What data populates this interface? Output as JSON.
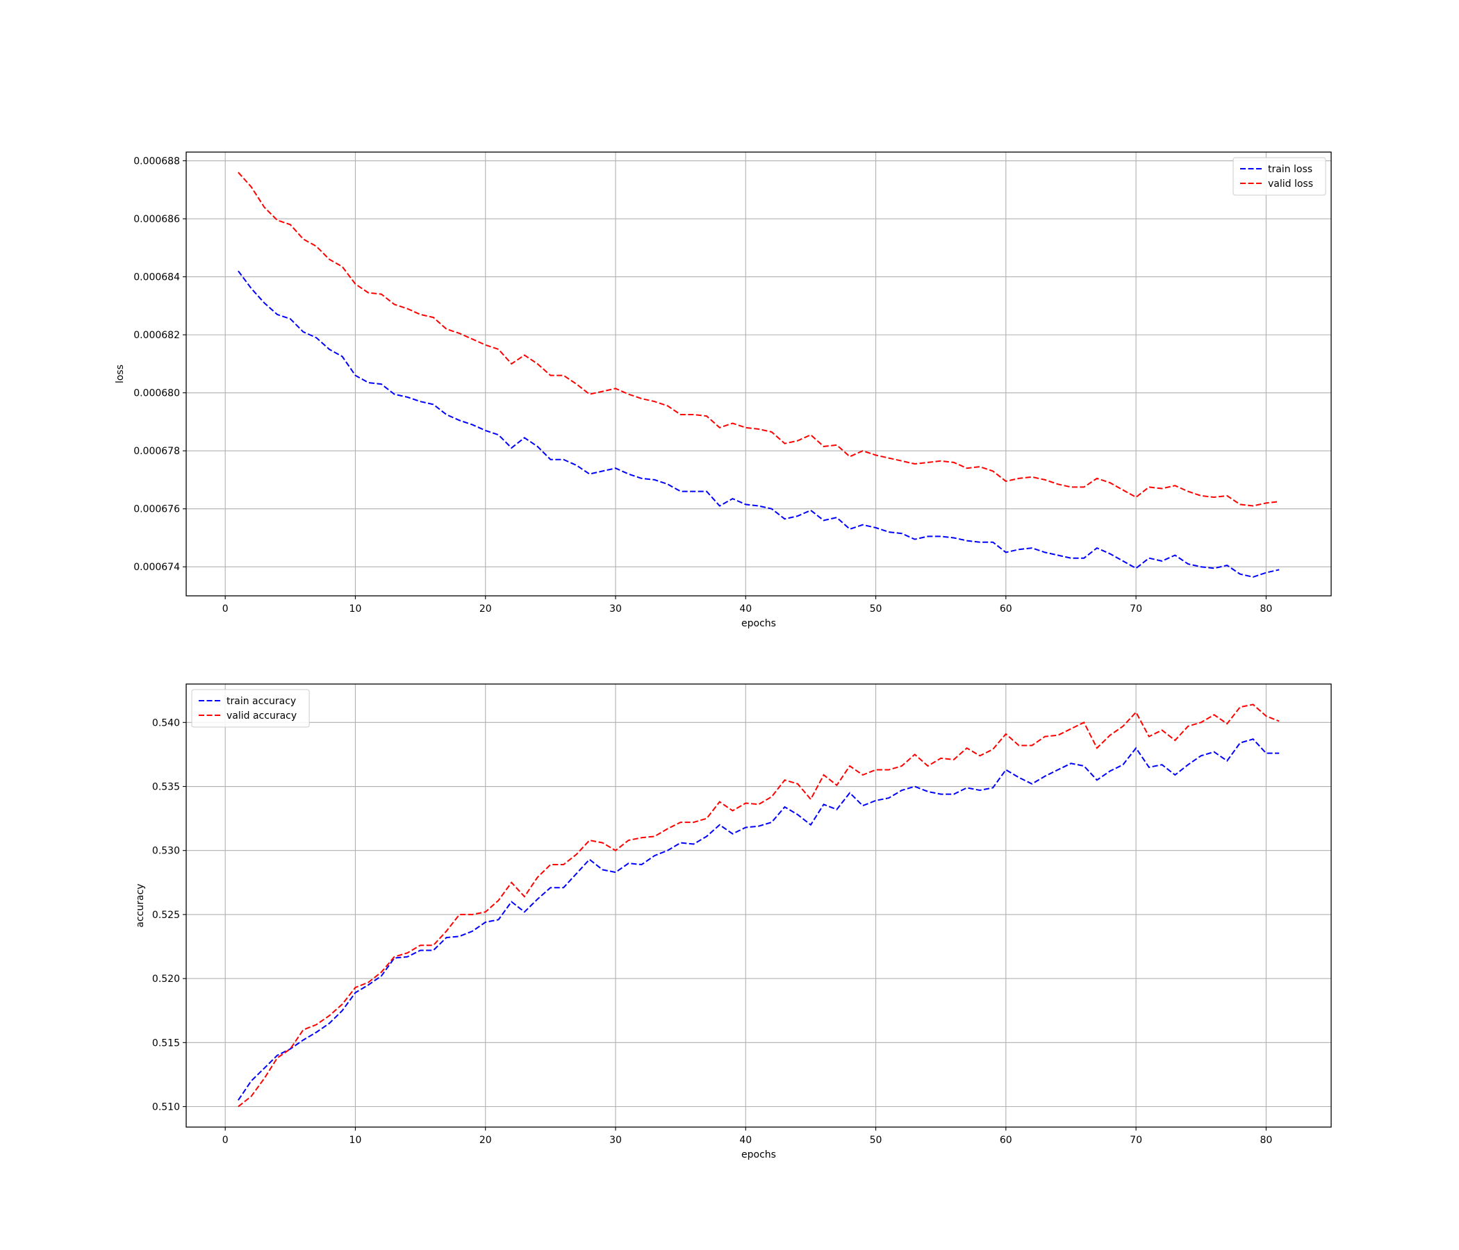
{
  "chart_data": [
    {
      "type": "line",
      "title": "",
      "xlabel": "epochs",
      "ylabel": "loss",
      "xlim": [
        -3,
        85
      ],
      "ylim": [
        0.000673,
        0.0006883
      ],
      "xticks": [
        0,
        10,
        20,
        30,
        40,
        50,
        60,
        70,
        80
      ],
      "xtick_labels": [
        "0",
        "10",
        "20",
        "30",
        "40",
        "50",
        "60",
        "70",
        "80"
      ],
      "yticks": [
        0.000674,
        0.000676,
        0.000678,
        0.00068,
        0.000682,
        0.000684,
        0.000686,
        0.000688
      ],
      "ytick_labels": [
        "0.000674",
        "0.000676",
        "0.000678",
        "0.000680",
        "0.000682",
        "0.000684",
        "0.000686",
        "0.000688"
      ],
      "grid": true,
      "legend_position": "top-right",
      "line_style": "dashed",
      "x": [
        1,
        2,
        3,
        4,
        5,
        6,
        7,
        8,
        9,
        10,
        11,
        12,
        13,
        14,
        15,
        16,
        17,
        18,
        19,
        20,
        21,
        22,
        23,
        24,
        25,
        26,
        27,
        28,
        29,
        30,
        31,
        32,
        33,
        34,
        35,
        36,
        37,
        38,
        39,
        40,
        41,
        42,
        43,
        44,
        45,
        46,
        47,
        48,
        49,
        50,
        51,
        52,
        53,
        54,
        55,
        56,
        57,
        58,
        59,
        60,
        61,
        62,
        63,
        64,
        65,
        66,
        67,
        68,
        69,
        70,
        71,
        72,
        73,
        74,
        75,
        76,
        77,
        78,
        79,
        80,
        81
      ],
      "series": [
        {
          "name": "train loss",
          "color": "#0000ff",
          "values": [
            0.0006842,
            0.0006836,
            0.0006831,
            0.0006827,
            0.00068255,
            0.0006821,
            0.0006819,
            0.0006815,
            0.00068125,
            0.0006806,
            0.00068035,
            0.0006803,
            0.00067995,
            0.00067985,
            0.0006797,
            0.0006796,
            0.00067925,
            0.00067905,
            0.0006789,
            0.0006787,
            0.00067855,
            0.0006781,
            0.00067845,
            0.00067815,
            0.0006777,
            0.0006777,
            0.0006775,
            0.0006772,
            0.0006773,
            0.0006774,
            0.0006772,
            0.00067705,
            0.000677,
            0.00067685,
            0.0006766,
            0.0006766,
            0.0006766,
            0.0006761,
            0.00067635,
            0.00067615,
            0.0006761,
            0.000676,
            0.00067565,
            0.00067575,
            0.00067595,
            0.0006756,
            0.0006757,
            0.0006753,
            0.00067545,
            0.00067535,
            0.0006752,
            0.00067515,
            0.00067495,
            0.00067505,
            0.00067505,
            0.000675,
            0.0006749,
            0.00067485,
            0.00067485,
            0.0006745,
            0.0006746,
            0.00067465,
            0.0006745,
            0.0006744,
            0.0006743,
            0.0006743,
            0.00067465,
            0.00067445,
            0.0006742,
            0.00067395,
            0.0006743,
            0.0006742,
            0.0006744,
            0.0006741,
            0.000674,
            0.00067395,
            0.00067405,
            0.00067375,
            0.00067365,
            0.0006738,
            0.0006739
          ]
        },
        {
          "name": "valid loss",
          "color": "#ff0000",
          "values": [
            0.0006876,
            0.0006871,
            0.0006864,
            0.00068595,
            0.0006858,
            0.0006853,
            0.00068505,
            0.0006846,
            0.00068435,
            0.00068375,
            0.00068345,
            0.0006834,
            0.00068305,
            0.0006829,
            0.0006827,
            0.0006826,
            0.0006822,
            0.00068205,
            0.00068185,
            0.00068165,
            0.0006815,
            0.000681,
            0.0006813,
            0.000681,
            0.0006806,
            0.0006806,
            0.0006803,
            0.00067995,
            0.00068005,
            0.00068015,
            0.00067995,
            0.0006798,
            0.0006797,
            0.00067955,
            0.00067925,
            0.00067925,
            0.0006792,
            0.0006788,
            0.00067895,
            0.0006788,
            0.00067875,
            0.00067865,
            0.00067825,
            0.00067835,
            0.00067855,
            0.00067815,
            0.0006782,
            0.0006778,
            0.000678,
            0.00067785,
            0.00067775,
            0.00067765,
            0.00067755,
            0.0006776,
            0.00067765,
            0.0006776,
            0.0006774,
            0.00067745,
            0.0006773,
            0.00067695,
            0.00067705,
            0.0006771,
            0.000677,
            0.00067685,
            0.00067675,
            0.00067675,
            0.00067705,
            0.0006769,
            0.00067665,
            0.0006764,
            0.00067675,
            0.0006767,
            0.0006768,
            0.0006766,
            0.00067645,
            0.0006764,
            0.00067645,
            0.00067615,
            0.0006761,
            0.0006762,
            0.00067625
          ]
        }
      ]
    },
    {
      "type": "line",
      "title": "",
      "xlabel": "epochs",
      "ylabel": "accuracy",
      "xlim": [
        -3,
        85
      ],
      "ylim": [
        0.5084,
        0.543
      ],
      "xticks": [
        0,
        10,
        20,
        30,
        40,
        50,
        60,
        70,
        80
      ],
      "xtick_labels": [
        "0",
        "10",
        "20",
        "30",
        "40",
        "50",
        "60",
        "70",
        "80"
      ],
      "yticks": [
        0.51,
        0.515,
        0.52,
        0.525,
        0.53,
        0.535,
        0.54
      ],
      "ytick_labels": [
        "0.510",
        "0.515",
        "0.520",
        "0.525",
        "0.530",
        "0.535",
        "0.540"
      ],
      "grid": true,
      "legend_position": "top-left",
      "line_style": "dashed",
      "x": [
        1,
        2,
        3,
        4,
        5,
        6,
        7,
        8,
        9,
        10,
        11,
        12,
        13,
        14,
        15,
        16,
        17,
        18,
        19,
        20,
        21,
        22,
        23,
        24,
        25,
        26,
        27,
        28,
        29,
        30,
        31,
        32,
        33,
        34,
        35,
        36,
        37,
        38,
        39,
        40,
        41,
        42,
        43,
        44,
        45,
        46,
        47,
        48,
        49,
        50,
        51,
        52,
        53,
        54,
        55,
        56,
        57,
        58,
        59,
        60,
        61,
        62,
        63,
        64,
        65,
        66,
        67,
        68,
        69,
        70,
        71,
        72,
        73,
        74,
        75,
        76,
        77,
        78,
        79,
        80,
        81
      ],
      "series": [
        {
          "name": "train accuracy",
          "color": "#0000ff",
          "values": [
            0.5105,
            0.512,
            0.513,
            0.514,
            0.5145,
            0.5152,
            0.5158,
            0.5165,
            0.5175,
            0.5189,
            0.5195,
            0.5202,
            0.5216,
            0.5217,
            0.5222,
            0.5222,
            0.5232,
            0.5233,
            0.5237,
            0.5244,
            0.5246,
            0.526,
            0.5252,
            0.5262,
            0.5271,
            0.5271,
            0.5282,
            0.5293,
            0.5285,
            0.5283,
            0.529,
            0.5289,
            0.5296,
            0.53,
            0.5306,
            0.5305,
            0.5311,
            0.532,
            0.5313,
            0.5318,
            0.5319,
            0.5322,
            0.5334,
            0.5328,
            0.532,
            0.5336,
            0.5332,
            0.5345,
            0.5335,
            0.5339,
            0.5341,
            0.5347,
            0.535,
            0.5346,
            0.5344,
            0.5344,
            0.5349,
            0.5347,
            0.5349,
            0.5363,
            0.5357,
            0.5352,
            0.5358,
            0.5363,
            0.5368,
            0.5366,
            0.5355,
            0.5362,
            0.5367,
            0.538,
            0.5365,
            0.5367,
            0.5359,
            0.5367,
            0.5374,
            0.5377,
            0.537,
            0.5384,
            0.5387,
            0.5376,
            0.5376
          ]
        },
        {
          "name": "valid accuracy",
          "color": "#ff0000",
          "values": [
            0.51,
            0.5108,
            0.5122,
            0.5138,
            0.5145,
            0.516,
            0.5164,
            0.5171,
            0.518,
            0.5193,
            0.5197,
            0.5205,
            0.5217,
            0.522,
            0.5226,
            0.5226,
            0.5237,
            0.525,
            0.525,
            0.5252,
            0.5261,
            0.5275,
            0.5264,
            0.5279,
            0.5289,
            0.5289,
            0.5297,
            0.5308,
            0.5306,
            0.53,
            0.5308,
            0.531,
            0.5311,
            0.5317,
            0.5322,
            0.5322,
            0.5325,
            0.5338,
            0.5331,
            0.5337,
            0.5336,
            0.5342,
            0.5355,
            0.5352,
            0.534,
            0.5359,
            0.5351,
            0.5366,
            0.5359,
            0.5363,
            0.5363,
            0.5366,
            0.5375,
            0.5366,
            0.5372,
            0.5371,
            0.538,
            0.5374,
            0.5379,
            0.5391,
            0.5382,
            0.5382,
            0.5389,
            0.539,
            0.5395,
            0.54,
            0.538,
            0.539,
            0.5397,
            0.5408,
            0.5389,
            0.5394,
            0.5386,
            0.5397,
            0.54,
            0.5406,
            0.5399,
            0.5412,
            0.5414,
            0.5405,
            0.5401
          ]
        }
      ]
    }
  ]
}
